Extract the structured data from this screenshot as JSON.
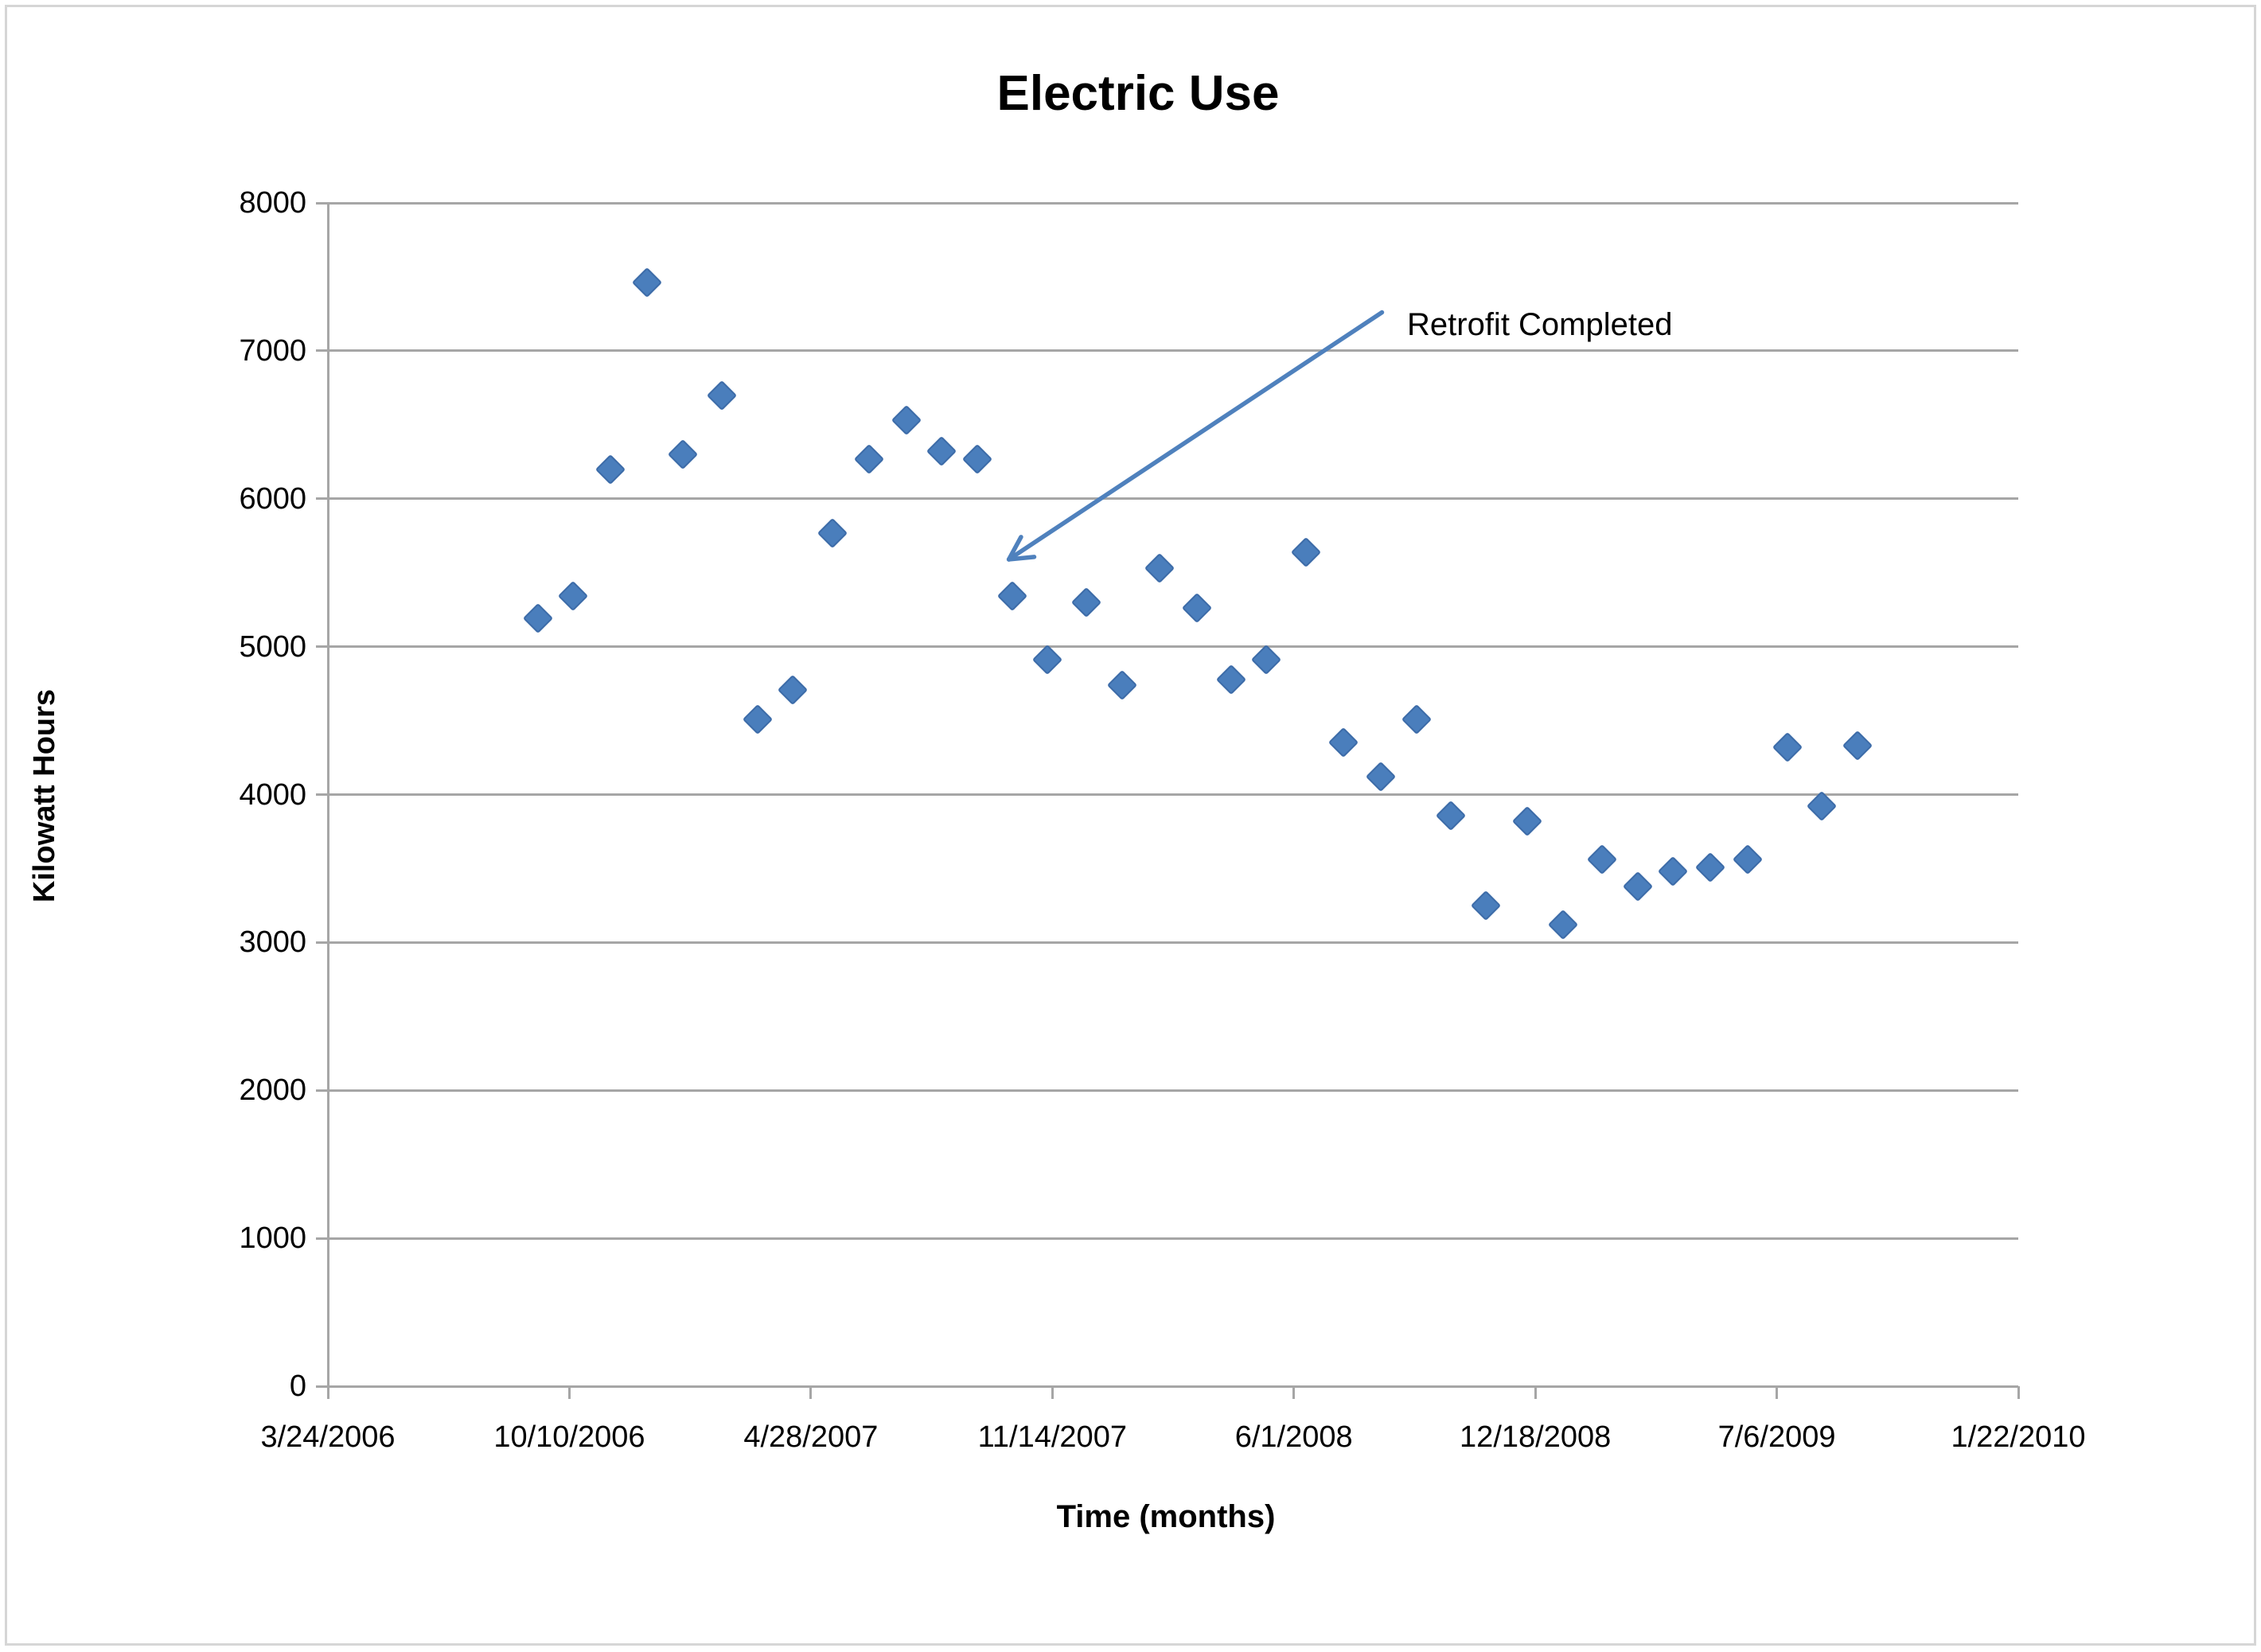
{
  "chart_data": {
    "type": "scatter",
    "title": "Electric Use",
    "xlabel": "Time (months)",
    "ylabel": "Kilowatt Hours",
    "grid": true,
    "legend": false,
    "marker": "diamond",
    "colors": {
      "marker_fill": "#4a7ebc",
      "marker_edge": "#3c6ba8",
      "gridline": "#a6a6a6",
      "axis": "#a6a6a6",
      "arrow": "#4f81bd",
      "text": "#000000",
      "frame_border": "#d6d6d6"
    },
    "y_axis": {
      "min": 0,
      "max": 8000,
      "tick_step": 1000,
      "tick_labels": [
        "8000",
        "7000",
        "6000",
        "5000",
        "4000",
        "3000",
        "2000",
        "1000",
        "0"
      ]
    },
    "x_axis": {
      "tick_interval_days": 200,
      "total_days": 1400,
      "tick_labels": [
        "3/24/2006",
        "10/10/2006",
        "4/28/2007",
        "11/14/2007",
        "6/1/2008",
        "12/18/2008",
        "7/6/2009",
        "1/22/2010"
      ]
    },
    "series": [
      {
        "name": "Electric Use",
        "points": [
          {
            "date": "9/14/2006",
            "days": 174,
            "kwh": 5190
          },
          {
            "date": "10/13/2006",
            "days": 203,
            "kwh": 5340
          },
          {
            "date": "11/13/2006",
            "days": 234,
            "kwh": 6200
          },
          {
            "date": "12/13/2006",
            "days": 264,
            "kwh": 7460
          },
          {
            "date": "1/12/2007",
            "days": 294,
            "kwh": 6300
          },
          {
            "date": "2/13/2007",
            "days": 326,
            "kwh": 6700
          },
          {
            "date": "3/15/2007",
            "days": 356,
            "kwh": 4510
          },
          {
            "date": "4/13/2007",
            "days": 385,
            "kwh": 4710
          },
          {
            "date": "5/16/2007",
            "days": 418,
            "kwh": 5770
          },
          {
            "date": "6/15/2007",
            "days": 448,
            "kwh": 6270
          },
          {
            "date": "7/16/2007",
            "days": 479,
            "kwh": 6530
          },
          {
            "date": "8/14/2007",
            "days": 508,
            "kwh": 6320
          },
          {
            "date": "9/13/2007",
            "days": 538,
            "kwh": 6270
          },
          {
            "date": "10/12/2007",
            "days": 567,
            "kwh": 5340
          },
          {
            "date": "11/10/2007",
            "days": 596,
            "kwh": 4910
          },
          {
            "date": "12/12/2007",
            "days": 628,
            "kwh": 5300
          },
          {
            "date": "1/11/2008",
            "days": 658,
            "kwh": 4740
          },
          {
            "date": "2/11/2008",
            "days": 689,
            "kwh": 5530
          },
          {
            "date": "3/13/2008",
            "days": 720,
            "kwh": 5260
          },
          {
            "date": "4/10/2008",
            "days": 748,
            "kwh": 4780
          },
          {
            "date": "5/9/2008",
            "days": 777,
            "kwh": 4910
          },
          {
            "date": "6/11/2008",
            "days": 810,
            "kwh": 5640
          },
          {
            "date": "7/12/2008",
            "days": 841,
            "kwh": 4350
          },
          {
            "date": "8/12/2008",
            "days": 872,
            "kwh": 4120
          },
          {
            "date": "9/11/2008",
            "days": 902,
            "kwh": 4510
          },
          {
            "date": "10/9/2008",
            "days": 930,
            "kwh": 3860
          },
          {
            "date": "11/7/2008",
            "days": 959,
            "kwh": 3250
          },
          {
            "date": "12/11/2008",
            "days": 993,
            "kwh": 3820
          },
          {
            "date": "1/10/2009",
            "days": 1023,
            "kwh": 3120
          },
          {
            "date": "2/11/2009",
            "days": 1055,
            "kwh": 3560
          },
          {
            "date": "3/13/2009",
            "days": 1085,
            "kwh": 3380
          },
          {
            "date": "4/11/2009",
            "days": 1114,
            "kwh": 3480
          },
          {
            "date": "5/12/2009",
            "days": 1145,
            "kwh": 3510
          },
          {
            "date": "6/12/2009",
            "days": 1176,
            "kwh": 3560
          },
          {
            "date": "7/15/2009",
            "days": 1209,
            "kwh": 4320
          },
          {
            "date": "8/12/2009",
            "days": 1237,
            "kwh": 3920
          },
          {
            "date": "9/11/2009",
            "days": 1267,
            "kwh": 4330
          }
        ]
      }
    ],
    "annotation": {
      "text": "Retrofit Completed",
      "arrow_from": {
        "days": 873,
        "kwh": 7260
      },
      "arrow_to": {
        "days": 564,
        "kwh": 5590
      }
    }
  }
}
